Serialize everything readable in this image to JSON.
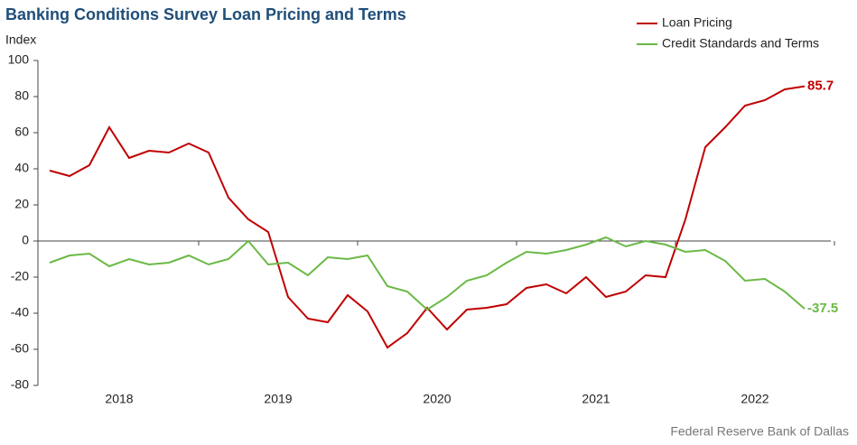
{
  "chart_data": {
    "type": "line",
    "title": "Banking Conditions Survey Loan Pricing and Terms",
    "y_axis_label": "Index",
    "source": "Federal Reserve Bank of Dallas",
    "categories": [
      "2018",
      null,
      null,
      null,
      null,
      null,
      null,
      null,
      "2019",
      null,
      null,
      null,
      null,
      null,
      null,
      null,
      "2020",
      null,
      null,
      null,
      null,
      null,
      null,
      null,
      "2021",
      null,
      null,
      null,
      null,
      null,
      null,
      null,
      "2022",
      null,
      null,
      null,
      null,
      null,
      null
    ],
    "series": [
      {
        "name": "Loan Pricing",
        "color": "#c00000",
        "values": [
          39,
          36,
          42,
          63,
          46,
          50,
          49,
          54,
          49,
          24,
          12,
          5,
          -31,
          -43,
          -45,
          -30,
          -39,
          -59,
          -51,
          -37,
          -49,
          -38,
          -37,
          -35,
          -26,
          -24,
          -29,
          -20,
          -31,
          -28,
          -19,
          -20,
          12,
          52,
          63,
          75,
          78,
          84,
          85.7
        ]
      },
      {
        "name": "Credit Standards and Terms",
        "color": "#6ab945",
        "values": [
          -12,
          -8,
          -7,
          -14,
          -10,
          -13,
          -12,
          -8,
          -13,
          -10,
          0,
          -13,
          -12,
          -19,
          -9,
          -10,
          -8,
          -25,
          -28,
          -38,
          -31,
          -22,
          -19,
          -12,
          -6,
          -7,
          -5,
          -2,
          2,
          -3,
          0,
          -2,
          -6,
          -5,
          -11,
          -22,
          -21,
          -28,
          -37.5
        ]
      }
    ],
    "ylim": [
      -80,
      100
    ],
    "yticks": [
      -80,
      -60,
      -40,
      -20,
      0,
      20,
      40,
      60,
      80,
      100
    ],
    "legend": "top-right"
  }
}
